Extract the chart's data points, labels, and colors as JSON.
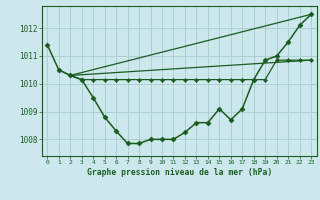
{
  "background_color": "#cce8ed",
  "grid_color": "#aacccc",
  "line_color": "#1a5c20",
  "title": "Graphe pression niveau de la mer (hPa)",
  "xlim": [
    -0.5,
    23.5
  ],
  "ylim": [
    1007.4,
    1012.8
  ],
  "yticks": [
    1008,
    1009,
    1010,
    1011,
    1012
  ],
  "xticks": [
    0,
    1,
    2,
    3,
    4,
    5,
    6,
    7,
    8,
    9,
    10,
    11,
    12,
    13,
    14,
    15,
    16,
    17,
    18,
    19,
    20,
    21,
    22,
    23
  ],
  "series": [
    {
      "x": [
        0,
        1,
        2,
        3,
        4,
        5,
        6,
        7,
        8,
        9,
        10,
        11,
        12,
        13,
        14,
        15,
        16,
        17,
        18,
        19,
        20,
        21,
        22,
        23
      ],
      "y": [
        1011.4,
        1010.5,
        1010.3,
        1010.15,
        1009.5,
        1008.8,
        1008.3,
        1007.85,
        1007.85,
        1008.0,
        1008.0,
        1008.0,
        1008.25,
        1008.6,
        1008.6,
        1009.1,
        1008.7,
        1009.1,
        1010.15,
        1010.85,
        1011.0,
        1011.5,
        1012.1,
        1012.5
      ],
      "marker": "D",
      "markersize": 2.5,
      "linewidth": 1.1,
      "zorder": 5
    },
    {
      "x": [
        1,
        2,
        3,
        4,
        5,
        6,
        7,
        8,
        9,
        10,
        11,
        12,
        13,
        14,
        15,
        16,
        17,
        18,
        19,
        20,
        21,
        22,
        23
      ],
      "y": [
        1010.5,
        1010.3,
        1010.15,
        1010.15,
        1010.15,
        1010.15,
        1010.15,
        1010.15,
        1010.15,
        1010.15,
        1010.15,
        1010.15,
        1010.15,
        1010.15,
        1010.15,
        1010.15,
        1010.15,
        1010.15,
        1010.15,
        1010.85,
        1010.85,
        1010.85,
        1010.85
      ],
      "marker": "D",
      "markersize": 2.0,
      "linewidth": 0.9,
      "zorder": 4
    },
    {
      "x": [
        2,
        23
      ],
      "y": [
        1010.3,
        1012.5
      ],
      "marker": null,
      "markersize": 0,
      "linewidth": 0.9,
      "zorder": 3
    },
    {
      "x": [
        2,
        23
      ],
      "y": [
        1010.3,
        1010.85
      ],
      "marker": null,
      "markersize": 0,
      "linewidth": 0.9,
      "zorder": 3
    }
  ]
}
